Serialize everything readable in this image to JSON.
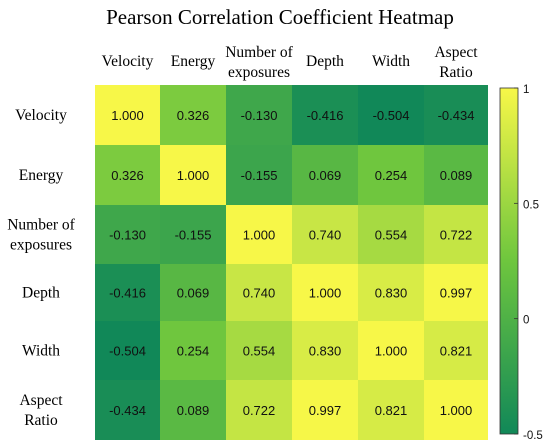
{
  "chart_data": {
    "type": "heatmap",
    "title": "Pearson Correlation Coefficient Heatmap",
    "columns": [
      [
        "Velocity"
      ],
      [
        "Energy"
      ],
      [
        "Number of",
        "exposures"
      ],
      [
        "Depth"
      ],
      [
        "Width"
      ],
      [
        "Aspect",
        "Ratio"
      ]
    ],
    "rows": [
      [
        "Velocity"
      ],
      [
        "Energy"
      ],
      [
        "Number of",
        "exposures"
      ],
      [
        "Depth"
      ],
      [
        "Width"
      ],
      [
        "Aspect",
        "Ratio"
      ]
    ],
    "values": [
      [
        1.0,
        0.326,
        -0.13,
        -0.416,
        -0.504,
        -0.434
      ],
      [
        0.326,
        1.0,
        -0.155,
        0.069,
        0.254,
        0.089
      ],
      [
        -0.13,
        -0.155,
        1.0,
        0.74,
        0.554,
        0.722
      ],
      [
        -0.416,
        0.069,
        0.74,
        1.0,
        0.83,
        0.997
      ],
      [
        -0.504,
        0.254,
        0.554,
        0.83,
        1.0,
        0.821
      ],
      [
        -0.434,
        0.089,
        0.722,
        0.997,
        0.821,
        1.0
      ]
    ],
    "colorbar": {
      "range": [
        -0.5,
        1
      ],
      "ticks": [
        1,
        0.5,
        0,
        -0.5
      ],
      "tick_labels": [
        "1",
        "0.5",
        "0",
        "-0.5"
      ]
    },
    "colors": {
      "low": "#118858",
      "mid": "#6ec63e",
      "high": "#f7f748"
    }
  }
}
